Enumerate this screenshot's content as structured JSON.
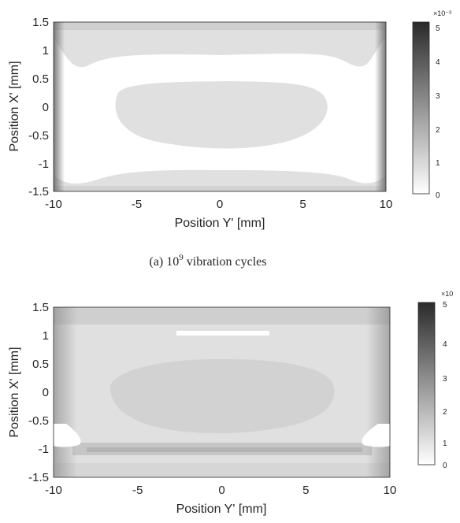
{
  "caption_a": {
    "prefix": "(a) 10",
    "sup": "9",
    "suffix": " vibration cycles"
  },
  "chart_data": [
    {
      "type": "heatmap",
      "xlabel": "Position Y' [mm]",
      "ylabel": "Position X' [mm]",
      "xlim": [
        -10,
        10
      ],
      "ylim": [
        -1.5,
        1.5
      ],
      "xticks": [
        "-10",
        "-5",
        "0",
        "5",
        "10"
      ],
      "yticks": [
        "1.5",
        "1",
        "0.5",
        "0",
        "-0.5",
        "-1",
        "-1.5"
      ],
      "colorbar": {
        "min": 0,
        "max": 5,
        "ticks": [
          "0",
          "1",
          "2",
          "3",
          "4",
          "5"
        ],
        "exponent_label": "×10⁻³",
        "colormap": "gray-reversed"
      },
      "regions": [
        {
          "level": 1.0,
          "desc": "top band",
          "y_from": 0.75,
          "y_to": 1.5
        },
        {
          "level": 0.8,
          "desc": "central ellipse",
          "center": [
            0,
            -0.05
          ],
          "half_width": 6.5,
          "half_height": 0.7
        },
        {
          "level": 0.8,
          "desc": "bottom band",
          "y_from": -1.5,
          "y_to": -1.15
        },
        {
          "level": 2.5,
          "desc": "corner peaks",
          "at": [
            [
              -10,
              1.5
            ],
            [
              10,
              1.5
            ],
            [
              -10,
              -1.5
            ],
            [
              10,
              -1.5
            ]
          ]
        }
      ]
    },
    {
      "type": "heatmap",
      "xlabel": "Position Y' [mm]",
      "ylabel": "Position X' [mm]",
      "xlim": [
        -10,
        10
      ],
      "ylim": [
        -1.5,
        1.5
      ],
      "xticks": [
        "-10",
        "-5",
        "0",
        "5",
        "10"
      ],
      "yticks": [
        "1.5",
        "1",
        "0.5",
        "0",
        "-0.5",
        "-1",
        "-1.5"
      ],
      "colorbar": {
        "min": 0,
        "max": 5,
        "ticks": [
          "0",
          "1",
          "2",
          "3",
          "4",
          "5"
        ],
        "exponent_label": "×10",
        "colormap": "gray-reversed"
      },
      "regions": [
        {
          "level": 1.0,
          "desc": "background field"
        },
        {
          "level": 1.4,
          "desc": "central ellipse",
          "center": [
            0,
            -0.1
          ],
          "half_width": 6,
          "half_height": 0.75
        },
        {
          "level": 1.8,
          "desc": "dark band near X'=-1",
          "y_from": -1.15,
          "y_to": -0.95
        },
        {
          "level": 0.0,
          "desc": "white patch near top",
          "at": [
            0,
            1.05
          ]
        },
        {
          "level": 0.0,
          "desc": "white notches at sides",
          "at": [
            [
              -9.2,
              -0.6
            ],
            [
              9.2,
              -0.6
            ]
          ]
        }
      ]
    }
  ],
  "colors": {
    "frame": "#262626",
    "field_light": "#e2e2e2",
    "field_mid": "#d4d4d4",
    "field_dark": "#b8b8b8",
    "cmap_light": "#ffffff",
    "cmap_dark": "#2a2a2a"
  }
}
